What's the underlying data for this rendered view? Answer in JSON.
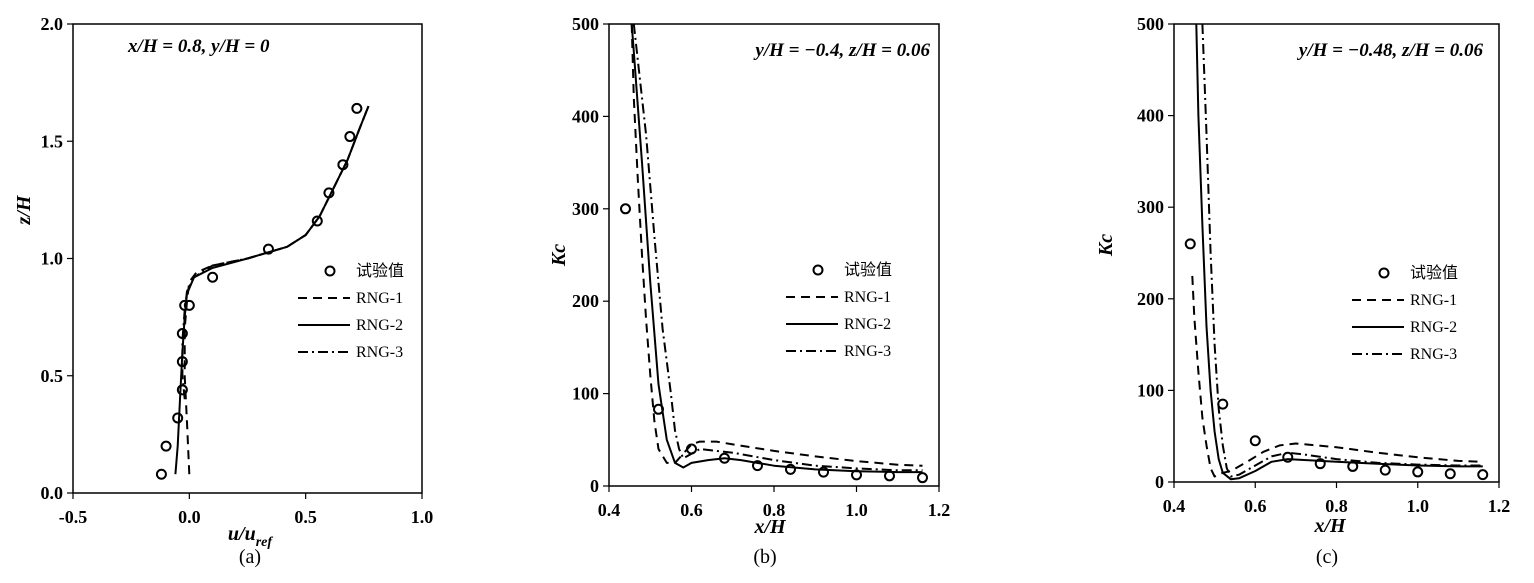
{
  "chart_data": [
    {
      "type": "line",
      "panel_label": "(a)",
      "annotation": "x/H = 0.8, y/H = 0",
      "xlabel_main": "u/u",
      "xlabel_sub": "ref",
      "ylabel": "z/H",
      "xlim": [
        -0.5,
        1.0
      ],
      "ylim": [
        0.0,
        2.0
      ],
      "xticks": [
        "-0.5",
        "0.0",
        "0.5",
        "1.0"
      ],
      "yticks": [
        "0.0",
        "0.5",
        "1.0",
        "1.5",
        "2.0"
      ],
      "legend": [
        "试验值",
        "RNG-1",
        "RNG-2",
        "RNG-3"
      ],
      "legend_position": "right",
      "series": [
        {
          "name": "试验值",
          "style": "markers",
          "x": [
            -0.12,
            -0.1,
            -0.05,
            -0.03,
            -0.03,
            -0.03,
            -0.02,
            0.0,
            0.1,
            0.34,
            0.55,
            0.6,
            0.66,
            0.69,
            0.72
          ],
          "y": [
            0.08,
            0.2,
            0.32,
            0.44,
            0.56,
            0.68,
            0.8,
            0.8,
            0.92,
            1.04,
            1.16,
            1.28,
            1.4,
            1.52,
            1.64
          ]
        },
        {
          "name": "RNG-1",
          "style": "dashed",
          "x": [
            0.0,
            -0.01,
            -0.02,
            -0.02,
            -0.01,
            0.0,
            0.03,
            0.1,
            0.25,
            0.42,
            0.5,
            0.56,
            0.62,
            0.68,
            0.73,
            0.77
          ],
          "y": [
            0.08,
            0.3,
            0.5,
            0.7,
            0.82,
            0.9,
            0.94,
            0.97,
            1.0,
            1.05,
            1.1,
            1.18,
            1.3,
            1.42,
            1.55,
            1.65
          ]
        },
        {
          "name": "RNG-2",
          "style": "solid",
          "x": [
            -0.06,
            -0.05,
            -0.04,
            -0.03,
            -0.02,
            -0.01,
            0.02,
            0.1,
            0.25,
            0.42,
            0.5,
            0.56,
            0.62,
            0.68,
            0.73,
            0.77
          ],
          "y": [
            0.08,
            0.2,
            0.4,
            0.6,
            0.75,
            0.85,
            0.92,
            0.96,
            1.0,
            1.05,
            1.1,
            1.18,
            1.3,
            1.42,
            1.55,
            1.65
          ]
        },
        {
          "name": "RNG-3",
          "style": "dashdot",
          "x": [
            -0.02,
            -0.03,
            -0.03,
            -0.02,
            -0.01,
            0.02,
            0.1,
            0.25,
            0.42,
            0.5,
            0.56,
            0.62,
            0.68,
            0.73,
            0.77
          ],
          "y": [
            0.4,
            0.5,
            0.65,
            0.78,
            0.86,
            0.92,
            0.97,
            1.0,
            1.05,
            1.1,
            1.18,
            1.3,
            1.42,
            1.55,
            1.65
          ]
        }
      ]
    },
    {
      "type": "line",
      "panel_label": "(b)",
      "annotation": "y/H = −0.4, z/H = 0.06",
      "xlabel_main": "x/H",
      "xlabel_sub": "",
      "ylabel": "Kc",
      "xlim": [
        0.4,
        1.2
      ],
      "ylim": [
        0,
        500
      ],
      "xticks": [
        "0.4",
        "0.6",
        "0.8",
        "1.0",
        "1.2"
      ],
      "yticks": [
        "0",
        "100",
        "200",
        "300",
        "400",
        "500"
      ],
      "legend": [
        "试验值",
        "RNG-1",
        "RNG-2",
        "RNG-3"
      ],
      "legend_position": "right",
      "series": [
        {
          "name": "试验值",
          "style": "markers",
          "x": [
            0.44,
            0.52,
            0.6,
            0.68,
            0.76,
            0.84,
            0.92,
            1.0,
            1.08,
            1.16
          ],
          "y": [
            300,
            83,
            40,
            30,
            22,
            18,
            15,
            12,
            11,
            9
          ]
        },
        {
          "name": "RNG-1",
          "style": "dashed",
          "x": [
            0.455,
            0.46,
            0.47,
            0.48,
            0.49,
            0.5,
            0.51,
            0.52,
            0.54,
            0.56,
            0.6,
            0.62,
            0.66,
            0.7,
            0.8,
            0.9,
            1.0,
            1.1,
            1.16
          ],
          "y": [
            500,
            420,
            330,
            250,
            180,
            120,
            70,
            40,
            25,
            25,
            45,
            48,
            48,
            45,
            38,
            32,
            27,
            23,
            22
          ]
        },
        {
          "name": "RNG-2",
          "style": "solid",
          "x": [
            0.455,
            0.46,
            0.48,
            0.5,
            0.52,
            0.54,
            0.56,
            0.58,
            0.6,
            0.64,
            0.68,
            0.72,
            0.8,
            0.9,
            1.0,
            1.1,
            1.16
          ],
          "y": [
            500,
            470,
            350,
            220,
            110,
            50,
            25,
            20,
            25,
            28,
            30,
            28,
            22,
            18,
            16,
            15,
            15
          ]
        },
        {
          "name": "RNG-3",
          "style": "dashdot",
          "x": [
            0.46,
            0.47,
            0.49,
            0.51,
            0.53,
            0.55,
            0.56,
            0.57,
            0.58,
            0.6,
            0.62,
            0.66,
            0.7,
            0.8,
            0.9,
            1.0,
            1.1,
            1.16
          ],
          "y": [
            500,
            460,
            380,
            270,
            170,
            100,
            60,
            40,
            30,
            35,
            40,
            38,
            36,
            28,
            22,
            19,
            17,
            17
          ]
        }
      ]
    },
    {
      "type": "line",
      "panel_label": "(c)",
      "annotation": "y/H = −0.48, z/H = 0.06",
      "xlabel_main": "x/H",
      "xlabel_sub": "",
      "ylabel": "Kc",
      "xlim": [
        0.4,
        1.2
      ],
      "ylim": [
        0,
        500
      ],
      "xticks": [
        "0.4",
        "0.6",
        "0.8",
        "1.0",
        "1.2"
      ],
      "yticks": [
        "0",
        "100",
        "200",
        "300",
        "400",
        "500"
      ],
      "legend": [
        "试验值",
        "RNG-1",
        "RNG-2",
        "RNG-3"
      ],
      "legend_position": "right",
      "series": [
        {
          "name": "试验值",
          "style": "markers",
          "x": [
            0.44,
            0.52,
            0.6,
            0.68,
            0.76,
            0.84,
            0.92,
            1.0,
            1.08,
            1.16
          ],
          "y": [
            260,
            85,
            45,
            27,
            20,
            17,
            13,
            11,
            9,
            8
          ]
        },
        {
          "name": "RNG-1",
          "style": "dashed",
          "x": [
            0.445,
            0.45,
            0.46,
            0.47,
            0.48,
            0.49,
            0.5,
            0.51,
            0.52,
            0.54,
            0.58,
            0.62,
            0.66,
            0.7,
            0.8,
            0.9,
            1.0,
            1.1,
            1.16
          ],
          "y": [
            225,
            180,
            120,
            70,
            40,
            15,
            6,
            8,
            10,
            12,
            22,
            33,
            40,
            42,
            38,
            32,
            27,
            23,
            22
          ]
        },
        {
          "name": "RNG-2",
          "style": "solid",
          "x": [
            0.455,
            0.46,
            0.47,
            0.48,
            0.49,
            0.5,
            0.51,
            0.52,
            0.54,
            0.56,
            0.6,
            0.64,
            0.68,
            0.72,
            0.8,
            0.9,
            1.0,
            1.1,
            1.16
          ],
          "y": [
            500,
            400,
            280,
            170,
            100,
            55,
            25,
            10,
            3,
            4,
            12,
            22,
            25,
            24,
            22,
            20,
            18,
            17,
            17
          ]
        },
        {
          "name": "RNG-3",
          "style": "dashdot",
          "x": [
            0.47,
            0.48,
            0.49,
            0.5,
            0.51,
            0.52,
            0.53,
            0.54,
            0.56,
            0.6,
            0.64,
            0.68,
            0.72,
            0.8,
            0.9,
            1.0,
            1.1,
            1.16
          ],
          "y": [
            500,
            380,
            250,
            150,
            80,
            40,
            15,
            6,
            8,
            18,
            28,
            32,
            30,
            25,
            21,
            19,
            18,
            18
          ]
        }
      ]
    }
  ]
}
